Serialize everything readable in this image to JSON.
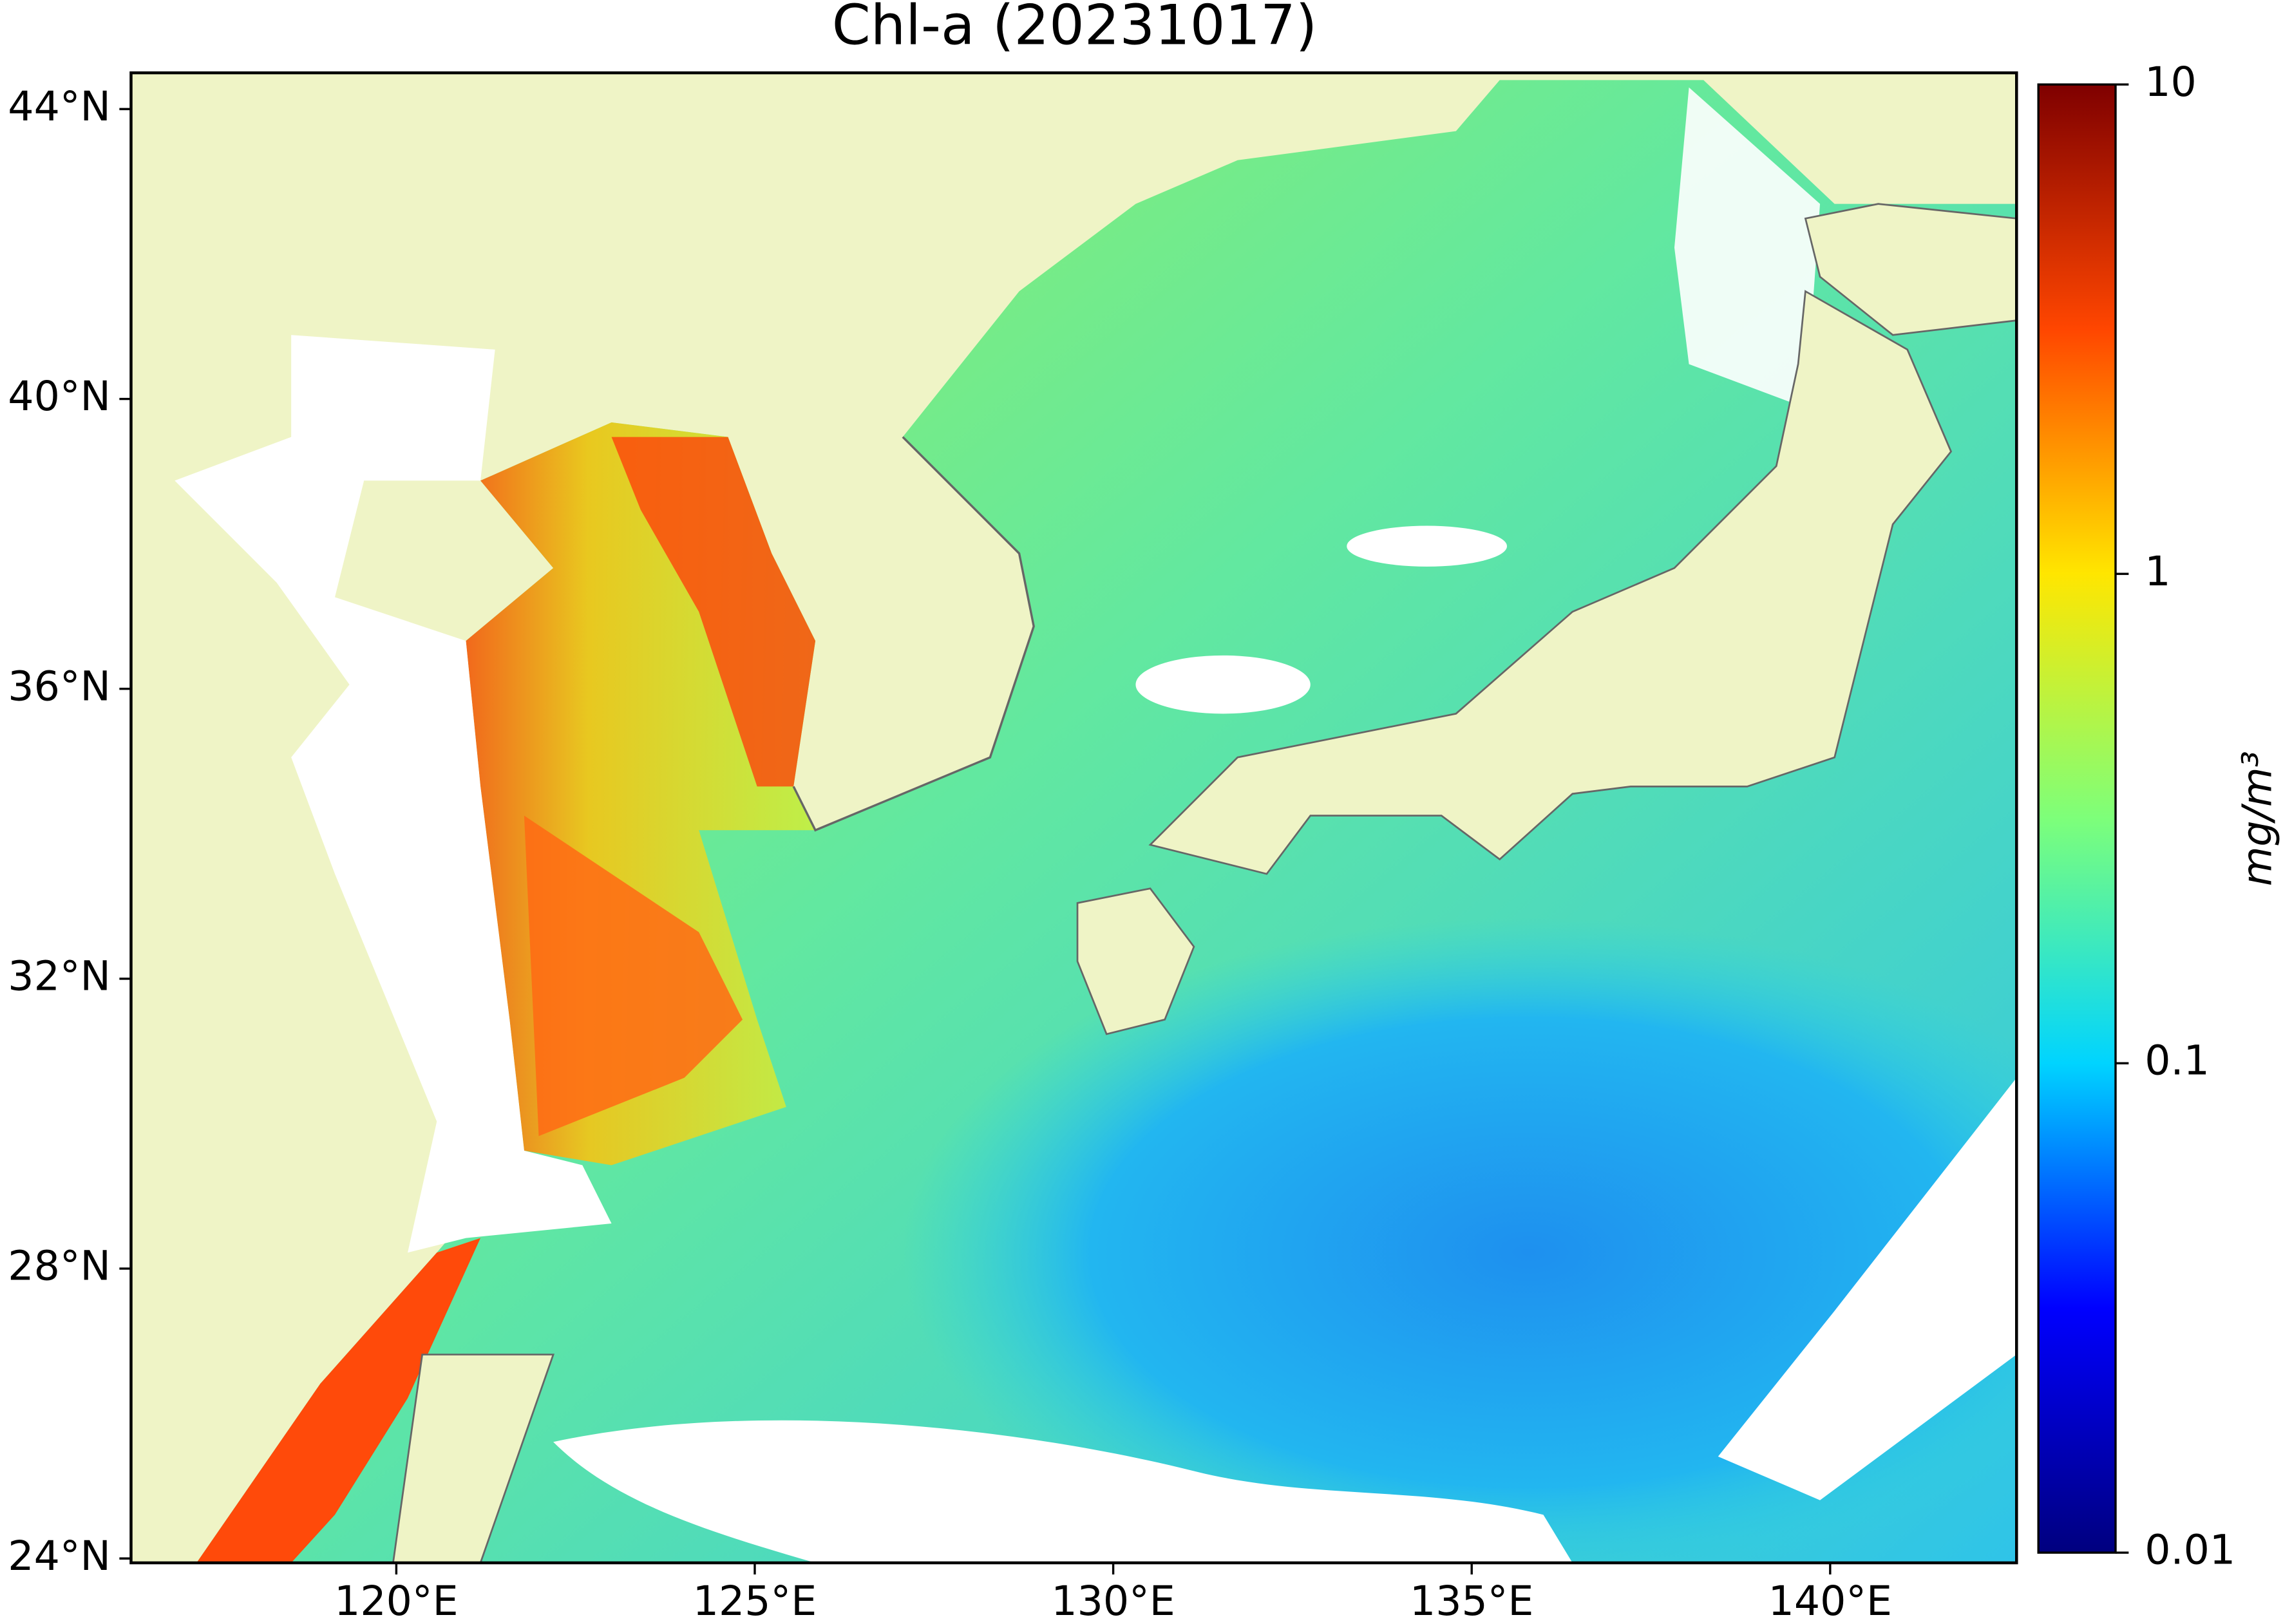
{
  "title": "Chl-a (20231017)",
  "map": {
    "xlim": [
      116.3,
      142.6
    ],
    "ylim": [
      23.94,
      44.5
    ],
    "xticks": [
      {
        "value": 120,
        "label": "120°E"
      },
      {
        "value": 125,
        "label": "125°E"
      },
      {
        "value": 130,
        "label": "130°E"
      },
      {
        "value": 135,
        "label": "135°E"
      },
      {
        "value": 140,
        "label": "140°E"
      }
    ],
    "yticks": [
      {
        "value": 24,
        "label": "24°N"
      },
      {
        "value": 28,
        "label": "28°N"
      },
      {
        "value": 32,
        "label": "32°N"
      },
      {
        "value": 36,
        "label": "36°N"
      },
      {
        "value": 40,
        "label": "40°N"
      },
      {
        "value": 44,
        "label": "44°N"
      }
    ]
  },
  "colorbar": {
    "label": "mg/m³",
    "scale": "log",
    "lim": [
      0.01,
      10
    ],
    "ticks": [
      0.01,
      0.1,
      1,
      10
    ],
    "colors": [
      "#00007f",
      "#0000ff",
      "#00d4ff",
      "#7dff7a",
      "#ffe600",
      "#ff4600",
      "#7f0000"
    ]
  }
}
